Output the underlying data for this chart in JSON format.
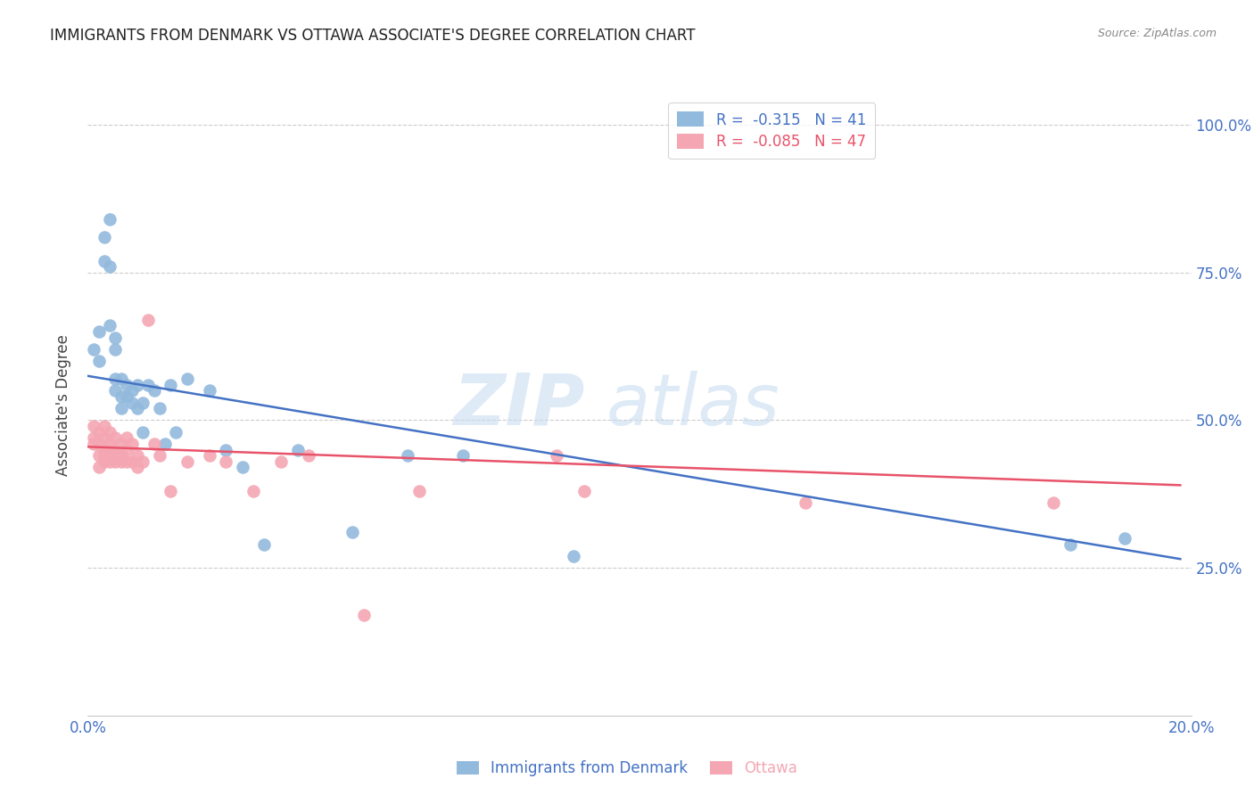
{
  "title": "IMMIGRANTS FROM DENMARK VS OTTAWA ASSOCIATE'S DEGREE CORRELATION CHART",
  "source": "Source: ZipAtlas.com",
  "ylabel": "Associate's Degree",
  "y_tick_labels": [
    "100.0%",
    "75.0%",
    "50.0%",
    "25.0%"
  ],
  "y_tick_positions": [
    1.0,
    0.75,
    0.5,
    0.25
  ],
  "x_lim": [
    0.0,
    0.2
  ],
  "y_lim": [
    0.0,
    1.05
  ],
  "watermark_zip": "ZIP",
  "watermark_atlas": "atlas",
  "blue_color": "#92BADD",
  "pink_color": "#F4A7B3",
  "line_blue": "#4472C4",
  "line_pink": "#E8536A",
  "blue_scatter_x": [
    0.001,
    0.002,
    0.002,
    0.003,
    0.003,
    0.004,
    0.004,
    0.004,
    0.005,
    0.005,
    0.005,
    0.005,
    0.006,
    0.006,
    0.006,
    0.007,
    0.007,
    0.008,
    0.008,
    0.009,
    0.009,
    0.01,
    0.01,
    0.011,
    0.012,
    0.013,
    0.014,
    0.015,
    0.016,
    0.018,
    0.022,
    0.025,
    0.028,
    0.032,
    0.038,
    0.048,
    0.058,
    0.068,
    0.088,
    0.178,
    0.188
  ],
  "blue_scatter_y": [
    0.62,
    0.65,
    0.6,
    0.81,
    0.77,
    0.84,
    0.76,
    0.66,
    0.64,
    0.62,
    0.57,
    0.55,
    0.57,
    0.54,
    0.52,
    0.56,
    0.54,
    0.55,
    0.53,
    0.56,
    0.52,
    0.53,
    0.48,
    0.56,
    0.55,
    0.52,
    0.46,
    0.56,
    0.48,
    0.57,
    0.55,
    0.45,
    0.42,
    0.29,
    0.45,
    0.31,
    0.44,
    0.44,
    0.27,
    0.29,
    0.3
  ],
  "pink_scatter_x": [
    0.001,
    0.001,
    0.001,
    0.002,
    0.002,
    0.002,
    0.002,
    0.003,
    0.003,
    0.003,
    0.003,
    0.003,
    0.004,
    0.004,
    0.004,
    0.004,
    0.005,
    0.005,
    0.005,
    0.005,
    0.006,
    0.006,
    0.006,
    0.007,
    0.007,
    0.007,
    0.008,
    0.008,
    0.009,
    0.009,
    0.01,
    0.011,
    0.012,
    0.013,
    0.015,
    0.018,
    0.022,
    0.025,
    0.03,
    0.035,
    0.04,
    0.05,
    0.06,
    0.085,
    0.09,
    0.13,
    0.175
  ],
  "pink_scatter_y": [
    0.49,
    0.47,
    0.46,
    0.48,
    0.46,
    0.44,
    0.42,
    0.49,
    0.47,
    0.45,
    0.44,
    0.43,
    0.48,
    0.46,
    0.45,
    0.43,
    0.47,
    0.45,
    0.44,
    0.43,
    0.46,
    0.44,
    0.43,
    0.47,
    0.45,
    0.43,
    0.46,
    0.43,
    0.44,
    0.42,
    0.43,
    0.67,
    0.46,
    0.44,
    0.38,
    0.43,
    0.44,
    0.43,
    0.38,
    0.43,
    0.44,
    0.17,
    0.38,
    0.44,
    0.38,
    0.36,
    0.36
  ],
  "blue_line_x": [
    0.0,
    0.198
  ],
  "blue_line_y": [
    0.575,
    0.265
  ],
  "pink_line_x": [
    0.0,
    0.198
  ],
  "pink_line_y": [
    0.455,
    0.39
  ],
  "grid_color": "#CCCCCC",
  "background_color": "#FFFFFF",
  "title_color": "#222222",
  "axis_label_color": "#4472C4",
  "right_axis_color": "#4472C4",
  "legend_label1": "R =  -0.315   N = 41",
  "legend_label2": "R =  -0.085   N = 47",
  "bottom_legend1": "Immigrants from Denmark",
  "bottom_legend2": "Ottawa"
}
